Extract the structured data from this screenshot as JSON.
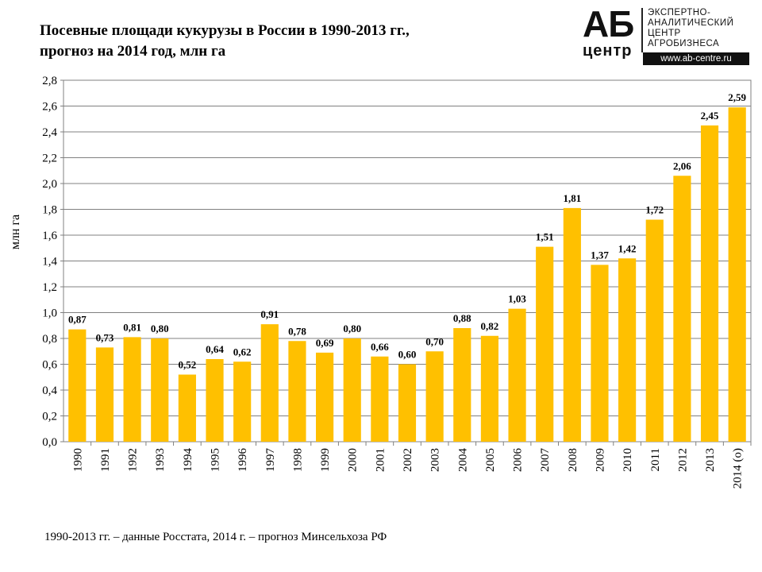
{
  "title": {
    "line1": "Посевные площади кукурузы  в России в 1990-2013 гг.,",
    "line2": "прогноз на 2014 год, млн га"
  },
  "logo": {
    "ab": "АБ",
    "center": "центр",
    "lines": [
      "ЭКСПЕРТНО-",
      "АНАЛИТИЧЕСКИЙ",
      "ЦЕНТР",
      "АГРОБИЗНЕСА"
    ],
    "url": "www.ab-centre.ru"
  },
  "footnote": "1990-2013  гг. – данные Росстата, 2014  г. – прогноз Минсельхоза РФ",
  "colors": {
    "bar": "#FFC000",
    "grid": "#808080",
    "axis": "#808080"
  },
  "chart_data": {
    "type": "bar",
    "title": "Посевные площади кукурузы  в России в 1990-2013 гг., прогноз на 2014 год, млн га",
    "xlabel": "",
    "ylabel": "млн  га",
    "ylim": [
      0,
      2.8
    ],
    "yticks": [
      "0,0",
      "0,2",
      "0,4",
      "0,6",
      "0,8",
      "1,0",
      "1,2",
      "1,4",
      "1,6",
      "1,8",
      "2,0",
      "2,2",
      "2,4",
      "2,6",
      "2,8"
    ],
    "categories": [
      "1990",
      "1991",
      "1992",
      "1993",
      "1994",
      "1995",
      "1996",
      "1997",
      "1998",
      "1999",
      "2000",
      "2001",
      "2002",
      "2003",
      "2004",
      "2005",
      "2006",
      "2007",
      "2008",
      "2009",
      "2010",
      "2011",
      "2012",
      "2013",
      "2014 (о)"
    ],
    "values": [
      0.87,
      0.73,
      0.81,
      0.8,
      0.52,
      0.64,
      0.62,
      0.91,
      0.78,
      0.69,
      0.8,
      0.66,
      0.6,
      0.7,
      0.88,
      0.82,
      1.03,
      1.51,
      1.81,
      1.37,
      1.42,
      1.72,
      2.06,
      2.45,
      2.59
    ],
    "labels": [
      "0,87",
      "0,73",
      "0,81",
      "0,80",
      "0,52",
      "0,64",
      "0,62",
      "0,91",
      "0,78",
      "0,69",
      "0,80",
      "0,66",
      "0,60",
      "0,70",
      "0,88",
      "0,82",
      "1,03",
      "1,51",
      "1,81",
      "1,37",
      "1,42",
      "1,72",
      "2,06",
      "2,45",
      "2,59"
    ],
    "grid": true,
    "legend": "none"
  }
}
